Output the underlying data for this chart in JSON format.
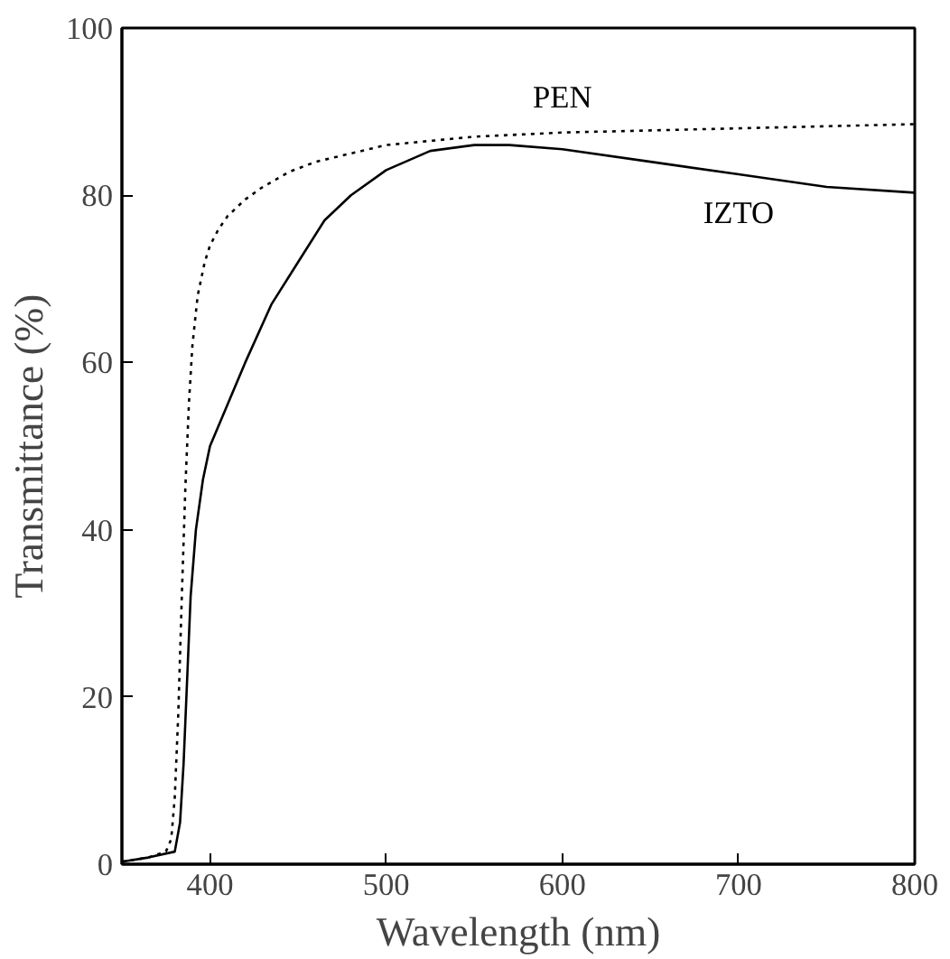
{
  "chart_data": {
    "type": "line",
    "xlabel": "Wavelength (nm)",
    "ylabel": "Transmittance (%)",
    "xlim": [
      350,
      800
    ],
    "ylim": [
      0,
      100
    ],
    "xticks": [
      400,
      500,
      600,
      700,
      800
    ],
    "yticks": [
      0,
      20,
      40,
      60,
      80,
      100
    ],
    "grid": false,
    "marker": "none",
    "series": [
      {
        "name": "IZTO",
        "color": "#000000",
        "line_style": "solid",
        "x": [
          350,
          365,
          380,
          383,
          385,
          387,
          389,
          392,
          396,
          400,
          410,
          420,
          435,
          450,
          465,
          480,
          500,
          525,
          550,
          570,
          600,
          650,
          700,
          750,
          800
        ],
        "values": [
          0.3,
          0.8,
          1.5,
          5,
          12,
          22,
          32,
          40,
          46,
          50,
          55,
          60,
          67,
          72,
          77,
          80,
          83,
          85.3,
          86,
          86,
          85.5,
          84,
          82.5,
          81,
          80.3
        ]
      },
      {
        "name": "PEN",
        "color": "#000000",
        "line_style": "dotted",
        "x": [
          350,
          365,
          375,
          378,
          380,
          382,
          384,
          386,
          388,
          390,
          393,
          397,
          400,
          405,
          410,
          420,
          430,
          445,
          460,
          480,
          500,
          550,
          600,
          700,
          800
        ],
        "values": [
          0.3,
          0.8,
          1.5,
          3,
          8,
          18,
          32,
          45,
          55,
          62,
          68,
          72,
          74,
          76,
          77.5,
          79.5,
          81,
          82.8,
          84,
          85,
          86,
          87,
          87.5,
          88,
          88.5
        ]
      }
    ]
  }
}
